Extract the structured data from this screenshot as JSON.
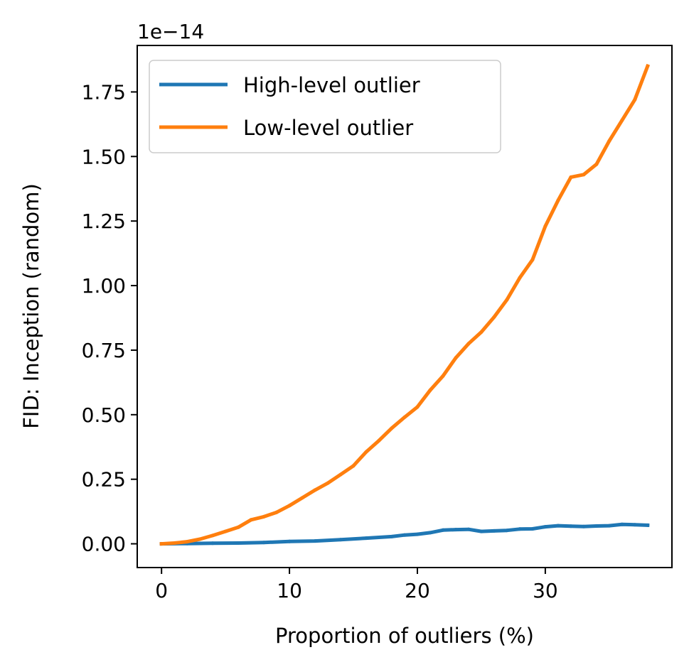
{
  "chart_data": {
    "type": "line",
    "xlabel": "Proportion of outliers (%)",
    "ylabel": "FID: Inception (random)",
    "y_offset_text": "1e−14",
    "xlim": [
      -1.9,
      39.9
    ],
    "ylim": [
      -0.092,
      1.93
    ],
    "x_ticks": [
      0,
      10,
      20,
      30
    ],
    "x_tick_labels": [
      "0",
      "10",
      "20",
      "30"
    ],
    "y_ticks": [
      0.0,
      0.25,
      0.5,
      0.75,
      1.0,
      1.25,
      1.5,
      1.75
    ],
    "y_tick_labels": [
      "0.00",
      "0.25",
      "0.50",
      "0.75",
      "1.00",
      "1.25",
      "1.50",
      "1.75"
    ],
    "grid": false,
    "legend_position": "top-left",
    "series": [
      {
        "name": "High-level outlier",
        "color": "#1f77b4",
        "x": [
          0,
          2,
          4,
          6,
          8,
          10,
          12,
          14,
          16,
          18,
          19,
          20,
          21,
          22,
          23,
          24,
          25,
          26,
          27,
          28,
          29,
          30,
          31,
          32,
          33,
          34,
          35,
          36,
          37,
          38
        ],
        "y": [
          0.0,
          0.001,
          0.002,
          0.003,
          0.005,
          0.009,
          0.011,
          0.016,
          0.022,
          0.028,
          0.034,
          0.037,
          0.043,
          0.053,
          0.055,
          0.056,
          0.048,
          0.05,
          0.052,
          0.057,
          0.058,
          0.066,
          0.07,
          0.068,
          0.067,
          0.069,
          0.07,
          0.075,
          0.074,
          0.072
        ]
      },
      {
        "name": "Low-level outlier",
        "color": "#ff7f0e",
        "x": [
          0,
          1,
          2,
          3,
          4,
          5,
          6,
          7,
          8,
          9,
          10,
          11,
          12,
          13,
          14,
          15,
          16,
          17,
          18,
          19,
          20,
          21,
          22,
          23,
          24,
          25,
          26,
          27,
          28,
          29,
          30,
          31,
          32,
          33,
          34,
          35,
          36,
          37,
          38
        ],
        "y": [
          0.0,
          0.003,
          0.008,
          0.018,
          0.032,
          0.048,
          0.064,
          0.093,
          0.105,
          0.122,
          0.148,
          0.178,
          0.208,
          0.235,
          0.268,
          0.302,
          0.356,
          0.4,
          0.448,
          0.49,
          0.53,
          0.595,
          0.65,
          0.72,
          0.775,
          0.82,
          0.878,
          0.945,
          1.03,
          1.1,
          1.23,
          1.33,
          1.42,
          1.43,
          1.47,
          1.56,
          1.64,
          1.72,
          1.85
        ]
      }
    ]
  }
}
